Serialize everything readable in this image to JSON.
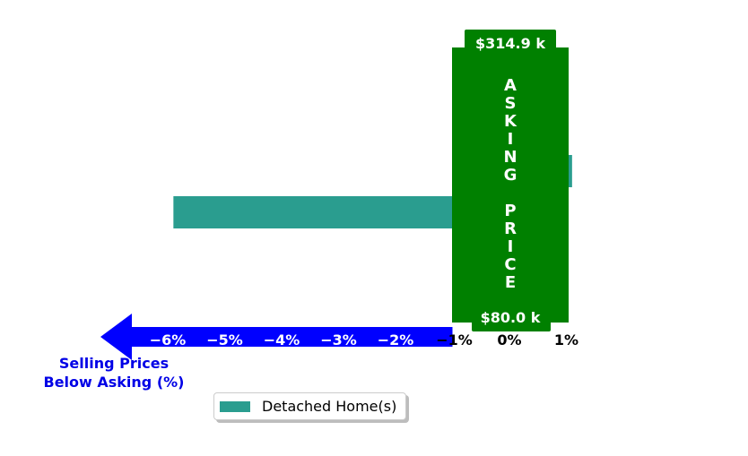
{
  "chart_data": {
    "type": "bar",
    "orientation": "horizontal",
    "series": [
      {
        "name": "Detached Home(s)",
        "color": "#2a9d8f",
        "values": [
          -5.9,
          1.1
        ]
      }
    ],
    "xlim": [
      -7,
      1.2
    ],
    "x_ticks": [
      "−6%",
      "−5%",
      "−4%",
      "−3%",
      "−2%",
      "−1%",
      "0%",
      "1%"
    ],
    "x_tick_values": [
      -6,
      -5,
      -4,
      -3,
      -2,
      -1,
      0,
      1
    ],
    "xlabel": [
      "Selling Prices",
      "Below Asking (%)"
    ],
    "asking_price": {
      "label": "ASKING PRICE",
      "top_value": "$314.9 k",
      "bottom_value": "$80.0 k",
      "color": "#008000"
    },
    "arrow_color": "#0000ff",
    "legend_placement": "bottom-center",
    "grid": false
  }
}
